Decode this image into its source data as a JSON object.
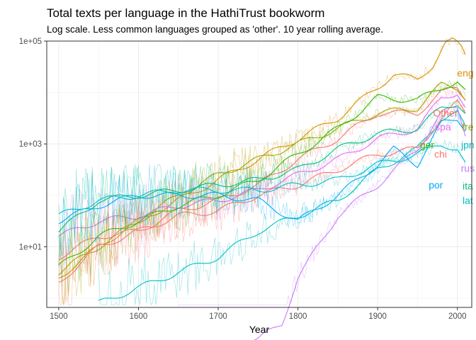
{
  "chart_data": {
    "type": "line",
    "title": "Total texts per language in the HathiTrust bookworm",
    "subtitle": "Log scale. Less common languages grouped as 'other'. 10 year rolling average.",
    "xlabel": "Year",
    "ylabel": "",
    "xlim": [
      1485,
      2018
    ],
    "ylim_log10": [
      -0.18,
      5.0
    ],
    "x_ticks": [
      1500,
      1600,
      1700,
      1800,
      1900,
      2000
    ],
    "y_ticks": [
      {
        "label": "1e+01",
        "log10": 1
      },
      {
        "label": "1e+03",
        "log10": 3
      },
      {
        "label": "1e+05",
        "log10": 5
      }
    ],
    "grid": true,
    "legend": "direct labels at right end of each series",
    "series": [
      {
        "name": "eng",
        "color": "#D89000",
        "label_log10": 4.38,
        "x": [
          1500,
          1550,
          1600,
          1650,
          1700,
          1750,
          1800,
          1850,
          1900,
          1920,
          1950,
          1970,
          1985,
          1995,
          2005,
          2010
        ],
        "log10": [
          0.4,
          1.0,
          1.5,
          1.9,
          2.3,
          2.7,
          3.1,
          3.5,
          4.1,
          4.35,
          4.25,
          4.55,
          4.95,
          5.0,
          4.9,
          4.75
        ]
      },
      {
        "name": "Other",
        "color": "#F8766D",
        "label_log10": 3.6,
        "x": [
          1500,
          1550,
          1600,
          1650,
          1700,
          1750,
          1800,
          1850,
          1900,
          1950,
          1980,
          2000,
          2010
        ],
        "log10": [
          0.8,
          1.2,
          1.3,
          1.7,
          1.9,
          2.2,
          2.7,
          3.1,
          3.6,
          3.6,
          4.0,
          4.1,
          3.9
        ]
      },
      {
        "name": "fre",
        "color": "#A3A500",
        "label_log10": 3.33,
        "x": [
          1500,
          1550,
          1600,
          1650,
          1700,
          1750,
          1800,
          1850,
          1900,
          1950,
          1980,
          2000,
          2010
        ],
        "log10": [
          0.5,
          1.0,
          1.5,
          2.0,
          2.4,
          2.7,
          3.0,
          3.3,
          3.6,
          3.7,
          4.15,
          4.1,
          3.9
        ]
      },
      {
        "name": "spa",
        "color": "#E76BF3",
        "label_log10": 3.33,
        "x": [
          1500,
          1550,
          1600,
          1650,
          1700,
          1750,
          1800,
          1850,
          1900,
          1950,
          1980,
          2000,
          2010
        ],
        "log10": [
          1.2,
          1.5,
          1.6,
          1.8,
          1.9,
          2.1,
          2.4,
          2.7,
          3.1,
          3.3,
          3.9,
          4.0,
          3.7
        ]
      },
      {
        "name": "ger",
        "color": "#39B600",
        "label_log10": 2.98,
        "x": [
          1500,
          1550,
          1600,
          1650,
          1700,
          1750,
          1800,
          1850,
          1900,
          1950,
          1980,
          2000,
          2010
        ],
        "log10": [
          0.6,
          1.2,
          1.5,
          1.8,
          2.0,
          2.3,
          2.8,
          3.3,
          3.9,
          3.85,
          4.1,
          4.2,
          4.0
        ]
      },
      {
        "name": "jpn",
        "color": "#00BFC4",
        "label_log10": 2.98,
        "x": [
          1550,
          1600,
          1650,
          1700,
          1750,
          1800,
          1850,
          1900,
          1950,
          1980,
          2000,
          2010
        ],
        "log10": [
          -0.1,
          0.2,
          0.5,
          0.8,
          1.3,
          1.6,
          1.9,
          2.5,
          2.9,
          3.5,
          3.6,
          3.3
        ]
      },
      {
        "name": "chi",
        "color": "#F8766D",
        "label_log10": 2.8,
        "x": [
          1500,
          1550,
          1600,
          1650,
          1700,
          1750,
          1800,
          1850,
          1900,
          1950,
          1980,
          2000,
          2010
        ],
        "log10": [
          0.3,
          1.0,
          1.3,
          1.6,
          1.7,
          2.0,
          2.2,
          2.5,
          2.8,
          2.9,
          3.5,
          3.8,
          3.6
        ]
      },
      {
        "name": "rus",
        "color": "#C77CFF",
        "label_log10": 2.53,
        "x": [
          1650,
          1700,
          1750,
          1780,
          1800,
          1850,
          1900,
          1950,
          1980,
          2000,
          2010
        ],
        "log10": [
          -0.9,
          -0.9,
          -0.8,
          -0.5,
          0.4,
          1.6,
          2.2,
          2.9,
          3.6,
          3.7,
          3.2
        ]
      },
      {
        "name": "por",
        "color": "#00A9FF",
        "label_log10": 2.2,
        "x": [
          1500,
          1550,
          1600,
          1650,
          1700,
          1750,
          1800,
          1850,
          1900,
          1920,
          1950,
          1980,
          2000,
          2010
        ],
        "log10": [
          1.5,
          1.8,
          2.0,
          2.0,
          2.0,
          1.9,
          1.5,
          2.0,
          2.6,
          2.9,
          2.6,
          3.4,
          3.5,
          3.3
        ]
      },
      {
        "name": "ita",
        "color": "#00BF7D",
        "label_log10": 2.18,
        "x": [
          1500,
          1550,
          1600,
          1650,
          1700,
          1750,
          1800,
          1850,
          1900,
          1950,
          1980,
          2000,
          2010
        ],
        "log10": [
          1.3,
          1.9,
          2.0,
          2.1,
          2.2,
          2.3,
          2.5,
          2.9,
          3.2,
          3.3,
          3.7,
          3.8,
          3.6
        ]
      },
      {
        "name": "lat",
        "color": "#00BFC4",
        "label_log10": 1.9,
        "x": [
          1500,
          1550,
          1600,
          1650,
          1700,
          1750,
          1800,
          1850,
          1900,
          1950,
          1980,
          2000,
          2010
        ],
        "log10": [
          1.6,
          1.9,
          2.0,
          2.1,
          2.1,
          2.1,
          2.2,
          2.3,
          2.6,
          2.8,
          3.0,
          2.9,
          2.6
        ]
      }
    ]
  }
}
